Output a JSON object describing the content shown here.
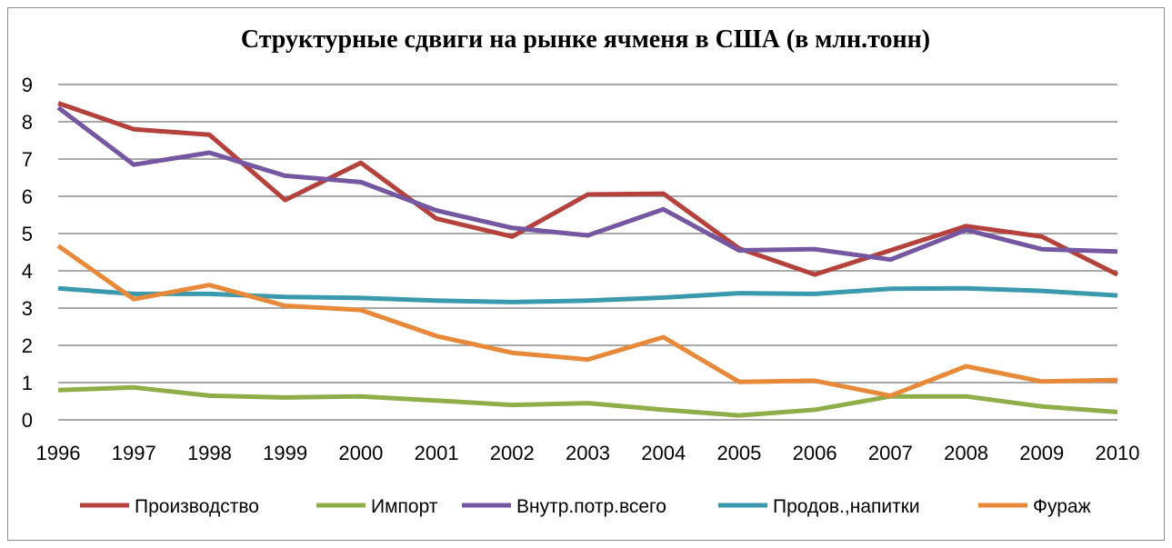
{
  "chart_data": {
    "type": "line",
    "title": "Структурные сдвиги на рынке ячменя в США (в млн.тонн)",
    "xlabel": "",
    "ylabel": "",
    "ylim": [
      0,
      9
    ],
    "yticks": [
      "0",
      "1",
      "2",
      "3",
      "4",
      "5",
      "6",
      "7",
      "8",
      "9"
    ],
    "grid": true,
    "legend_position": "bottom",
    "categories": [
      "1996",
      "1997",
      "1998",
      "1999",
      "2000",
      "2001",
      "2002",
      "2003",
      "2004",
      "2005",
      "2006",
      "2007",
      "2008",
      "2009",
      "2010"
    ],
    "series": [
      {
        "name": "Производство",
        "color": "#b4413c",
        "values": [
          8.5,
          7.8,
          7.65,
          5.9,
          6.9,
          5.4,
          4.92,
          6.05,
          6.07,
          4.6,
          3.9,
          4.55,
          5.2,
          4.92,
          3.9
        ]
      },
      {
        "name": "Импорт",
        "color": "#8fae4a",
        "values": [
          0.8,
          0.87,
          0.65,
          0.6,
          0.63,
          0.52,
          0.4,
          0.45,
          0.27,
          0.12,
          0.27,
          0.63,
          0.63,
          0.36,
          0.21
        ]
      },
      {
        "name": "Внутр.потр.всего",
        "color": "#7457a0",
        "values": [
          8.38,
          6.85,
          7.17,
          6.55,
          6.38,
          5.62,
          5.15,
          4.95,
          5.65,
          4.55,
          4.58,
          4.3,
          5.1,
          4.58,
          4.52
        ]
      },
      {
        "name": "Продов.,напитки",
        "color": "#3b99ae",
        "values": [
          3.53,
          3.38,
          3.38,
          3.3,
          3.27,
          3.2,
          3.16,
          3.2,
          3.28,
          3.4,
          3.38,
          3.52,
          3.53,
          3.46,
          3.34
        ]
      },
      {
        "name": "Фураж",
        "color": "#e8893a",
        "values": [
          4.67,
          3.24,
          3.62,
          3.06,
          2.95,
          2.25,
          1.8,
          1.62,
          2.22,
          1.02,
          1.05,
          0.65,
          1.44,
          1.03,
          1.07
        ]
      }
    ]
  }
}
